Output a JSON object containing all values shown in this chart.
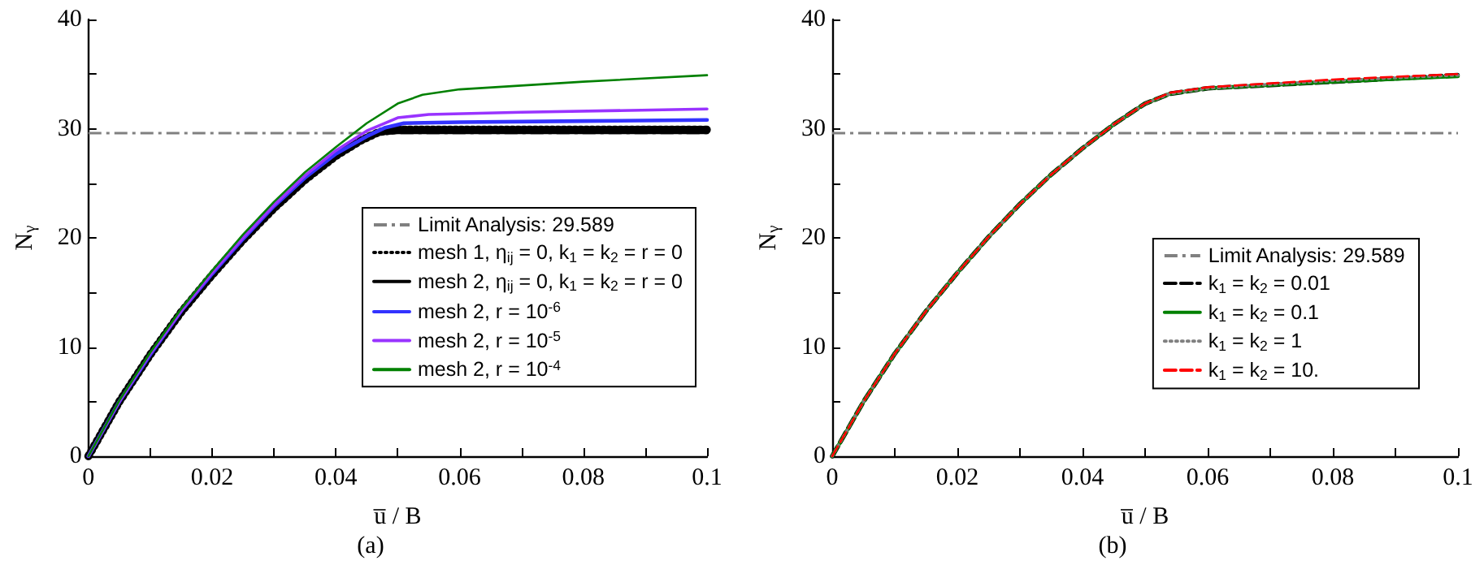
{
  "chart_data": [
    {
      "type": "line",
      "xlabel": "u̅ / B",
      "ylabel": "N$_{γ}$",
      "annotations": [
        "(a)"
      ],
      "legend": "bottom right",
      "grid": false,
      "xlim": [
        0,
        0.1
      ],
      "ylim": [
        0,
        40
      ],
      "xticks": [
        0,
        {
          "value": 0.01,
          "label": null
        },
        0.02,
        {
          "value": 0.03,
          "label": null
        },
        0.04,
        {
          "value": 0.05,
          "label": null
        },
        0.06,
        {
          "value": 0.07,
          "label": null
        },
        0.08,
        {
          "value": 0.09,
          "label": null
        },
        0.1
      ],
      "yticks": [
        0,
        {
          "value": 5,
          "label": null
        },
        10,
        {
          "value": 15,
          "label": null
        },
        20,
        {
          "value": 25,
          "label": null
        },
        30,
        {
          "value": 35,
          "label": null
        },
        40
      ],
      "ref_lines": [
        {
          "axis": "y",
          "value": 29.589,
          "label": "Limit Analysis: 29.589",
          "color": "#808080",
          "line_style": "dashed"
        }
      ],
      "series": [
        {
          "name": "mesh 1, η$_{ij}$ = 0, k$_{1}$ = k$_{2}$ = r = 0",
          "color": "#000000",
          "line_style": "dotted",
          "x": [
            0,
            0.005,
            0.01,
            0.015,
            0.02,
            0.025,
            0.03,
            0.035,
            0.04,
            0.044,
            0.047,
            0.05,
            0.07,
            0.1
          ],
          "values": [
            0,
            5,
            9.3,
            13.2,
            16.6,
            19.8,
            22.7,
            25.3,
            27.5,
            28.9,
            29.7,
            29.9,
            29.9,
            29.9
          ]
        },
        {
          "name": "mesh 2, η$_{ij}$ = 0, k$_{1}$ = k$_{2}$ = r = 0",
          "color": "#000000",
          "line_style": "solid",
          "x": [
            0,
            0.005,
            0.01,
            0.015,
            0.02,
            0.025,
            0.03,
            0.035,
            0.04,
            0.044,
            0.047,
            0.05,
            0.07,
            0.1
          ],
          "values": [
            0,
            5,
            9.3,
            13.2,
            16.6,
            19.8,
            22.7,
            25.3,
            27.5,
            28.9,
            29.6,
            29.7,
            29.7,
            29.7
          ]
        },
        {
          "name": "mesh 2, r = 10$^{-6}$",
          "color": "#3333ff",
          "line_style": "solid",
          "x": [
            0,
            0.005,
            0.01,
            0.015,
            0.02,
            0.025,
            0.03,
            0.035,
            0.04,
            0.045,
            0.048,
            0.051,
            0.06,
            0.08,
            0.1
          ],
          "values": [
            0,
            5,
            9.3,
            13.3,
            16.7,
            19.9,
            22.9,
            25.5,
            27.7,
            29.3,
            30.1,
            30.5,
            30.6,
            30.7,
            30.8
          ]
        },
        {
          "name": "mesh 2, r = 10$^{-5}$",
          "color": "#9933ff",
          "line_style": "solid",
          "x": [
            0,
            0.005,
            0.01,
            0.015,
            0.02,
            0.025,
            0.03,
            0.035,
            0.04,
            0.045,
            0.05,
            0.055,
            0.07,
            0.1
          ],
          "values": [
            0,
            5,
            9.4,
            13.3,
            16.8,
            20,
            23,
            25.7,
            28,
            29.8,
            31,
            31.3,
            31.5,
            31.8
          ]
        },
        {
          "name": "mesh 2, r = 10$^{-4}$",
          "color": "#008000",
          "line_style": "solid",
          "x": [
            0,
            0.005,
            0.01,
            0.015,
            0.02,
            0.025,
            0.03,
            0.035,
            0.04,
            0.045,
            0.05,
            0.054,
            0.06,
            0.08,
            0.1
          ],
          "values": [
            0,
            5.1,
            9.5,
            13.5,
            17,
            20.3,
            23.3,
            26,
            28.3,
            30.5,
            32.3,
            33.1,
            33.6,
            34.3,
            34.9
          ]
        }
      ]
    },
    {
      "type": "line",
      "xlabel": "u̅ / B",
      "ylabel": "N$_{γ}$",
      "annotations": [
        "(b)"
      ],
      "legend": "right",
      "grid": false,
      "xlim": [
        0,
        0.1
      ],
      "ylim": [
        0,
        40
      ],
      "xticks": [
        0,
        {
          "value": 0.01,
          "label": null
        },
        0.02,
        {
          "value": 0.03,
          "label": null
        },
        0.04,
        {
          "value": 0.05,
          "label": null
        },
        0.06,
        {
          "value": 0.07,
          "label": null
        },
        0.08,
        {
          "value": 0.09,
          "label": null
        },
        0.1
      ],
      "yticks": [
        0,
        {
          "value": 5,
          "label": null
        },
        10,
        {
          "value": 15,
          "label": null
        },
        20,
        {
          "value": 25,
          "label": null
        },
        30,
        {
          "value": 35,
          "label": null
        },
        40
      ],
      "ref_lines": [
        {
          "axis": "y",
          "value": 29.589,
          "label": "Limit Analysis: 29.589",
          "color": "#808080",
          "line_style": "dashed"
        }
      ],
      "series": [
        {
          "name": "k$_{1}$ = k$_{2}$ = 0.01",
          "color": "#000000",
          "line_style": "dashed",
          "x": [
            0,
            0.005,
            0.01,
            0.015,
            0.02,
            0.025,
            0.03,
            0.035,
            0.04,
            0.045,
            0.05,
            0.054,
            0.06,
            0.08,
            0.1
          ],
          "values": [
            0,
            5,
            9.4,
            13.3,
            16.8,
            20.1,
            23.1,
            25.8,
            28.2,
            30.4,
            32.3,
            33.2,
            33.7,
            34.3,
            34.9
          ]
        },
        {
          "name": "k$_{1}$ = k$_{2}$ = 0.1",
          "color": "#008000",
          "line_style": "solid",
          "x": [
            0,
            0.005,
            0.01,
            0.015,
            0.02,
            0.025,
            0.03,
            0.035,
            0.04,
            0.045,
            0.05,
            0.054,
            0.06,
            0.08,
            0.1
          ],
          "values": [
            0,
            5,
            9.4,
            13.3,
            16.8,
            20.1,
            23.1,
            25.8,
            28.2,
            30.4,
            32.3,
            33.2,
            33.7,
            34.3,
            34.8
          ]
        },
        {
          "name": "k$_{1}$ = k$_{2}$ = 1",
          "color": "#808080",
          "line_style": "dotted",
          "x": [
            0,
            0.005,
            0.01,
            0.015,
            0.02,
            0.025,
            0.03,
            0.035,
            0.04,
            0.045,
            0.05,
            0.054,
            0.06,
            0.08,
            0.1
          ],
          "values": [
            0,
            5,
            9.4,
            13.3,
            16.8,
            20.1,
            23.1,
            25.8,
            28.2,
            30.4,
            32.3,
            33.2,
            33.7,
            34.4,
            34.9
          ]
        },
        {
          "name": "k$_{1}$ = k$_{2}$ = 10.",
          "color": "#ff0000",
          "line_style": "dashed",
          "x": [
            0,
            0.005,
            0.01,
            0.015,
            0.02,
            0.025,
            0.03,
            0.035,
            0.04,
            0.045,
            0.05,
            0.054,
            0.06,
            0.08,
            0.1
          ],
          "values": [
            0,
            5,
            9.4,
            13.3,
            16.8,
            20.1,
            23.1,
            25.8,
            28.2,
            30.4,
            32.3,
            33.3,
            33.8,
            34.5,
            35
          ]
        }
      ]
    }
  ]
}
